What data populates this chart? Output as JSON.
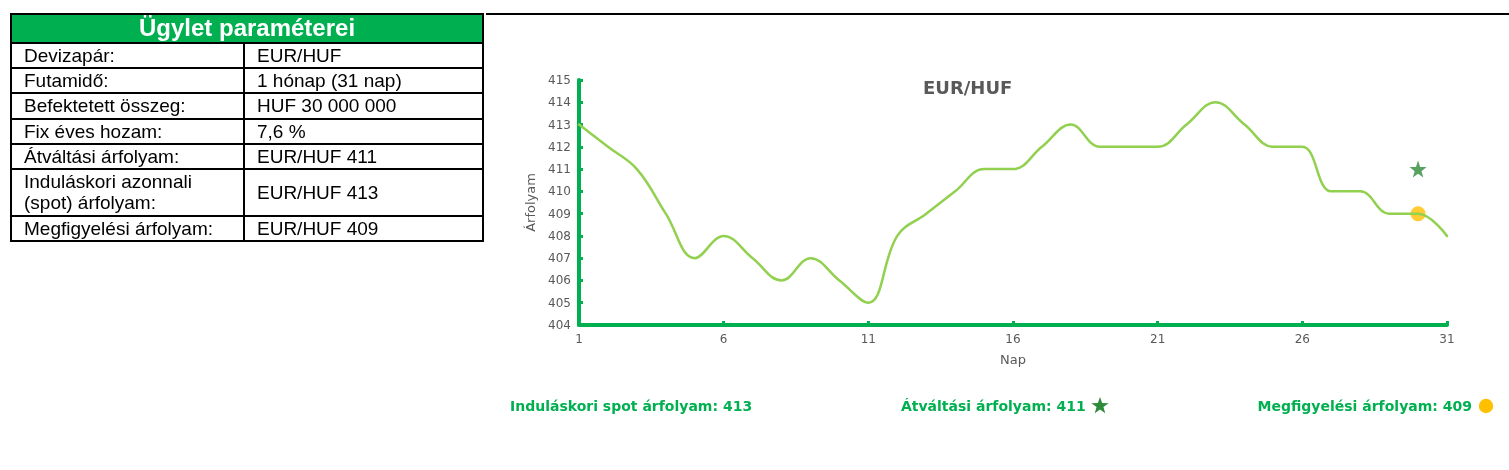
{
  "chart_data": [
    {
      "type": "other",
      "title": "Ügylet paraméterei",
      "annotations": [
        "Devizapár:",
        "EUR/HUF",
        "Futamidő:",
        "1 hónap (31 nap)",
        "Befektetett összeg:",
        "HUF 30 000 000",
        "Fix éves hozam:",
        "7,6 %",
        "Átváltási árfolyam:",
        "EUR/HUF 411",
        "Induláskori azonnali (spot) árfolyam:",
        "EUR/HUF 413",
        "Megfigyelési árfolyam:",
        "EUR/HUF 409"
      ]
    },
    {
      "type": "line",
      "title": "EUR/HUF",
      "xlabel": "Nap",
      "ylabel": "Árfolyam",
      "xlim": [
        1,
        31
      ],
      "xticks": [
        1,
        6,
        11,
        16,
        21,
        26,
        31
      ],
      "ylim": [
        404,
        415
      ],
      "yticks": [
        404,
        405,
        406,
        407,
        408,
        409,
        410,
        411,
        412,
        413,
        414,
        415
      ],
      "grid": false,
      "legend": "bottom",
      "annotations": [
        "Induláskori spot árfolyam: 413"
      ],
      "series": [
        {
          "type": "line",
          "color": "#92d050",
          "marker": "none",
          "x": [
            1,
            2,
            3,
            4,
            5,
            6,
            7,
            8,
            9,
            10,
            11,
            12,
            13,
            14,
            15,
            16,
            17,
            18,
            19,
            20,
            21,
            22,
            23,
            24,
            25,
            26,
            27,
            28,
            29,
            30,
            31
          ],
          "values": [
            413,
            412,
            411,
            409,
            407,
            408,
            407,
            406,
            407,
            406,
            405,
            408,
            409,
            410,
            411,
            411,
            412,
            413,
            412,
            412,
            412,
            413,
            414,
            413,
            412,
            412,
            410,
            410,
            409,
            409,
            408
          ]
        },
        {
          "type": "scatter",
          "name": "Átváltási árfolyam: 411",
          "color": "#2e8b3a",
          "marker": "star",
          "x": [
            30
          ],
          "values": [
            411
          ]
        },
        {
          "type": "scatter",
          "name": "Megfigyelési árfolyam: 409",
          "color": "#ffc000",
          "marker": "circle",
          "x": [
            30
          ],
          "values": [
            409
          ]
        }
      ]
    }
  ]
}
